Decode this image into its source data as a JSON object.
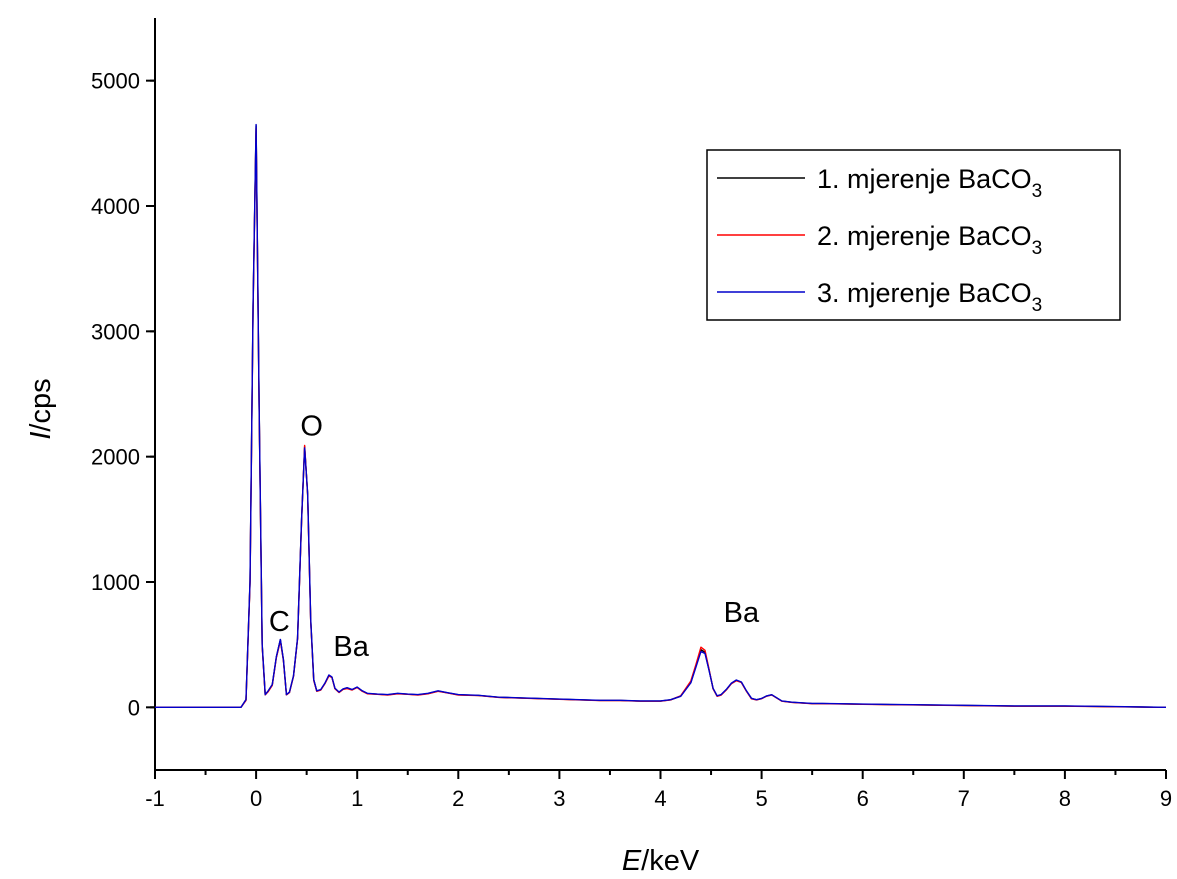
{
  "chart_data": {
    "type": "line",
    "title": "",
    "xlabel": {
      "italic": "E",
      "rest": "/keV"
    },
    "ylabel": {
      "italic": "I",
      "rest": "/cps"
    },
    "xlim": [
      -1,
      9
    ],
    "ylim": [
      -500,
      5500
    ],
    "xticks": [
      -1,
      0,
      1,
      2,
      3,
      4,
      5,
      6,
      7,
      8,
      9
    ],
    "yticks": [
      0,
      1000,
      2000,
      3000,
      4000,
      5000
    ],
    "grid": false,
    "legend_position": "top-right",
    "legend": [
      {
        "prefix": "1. mjerenje BaCO",
        "subscript": "3",
        "color": "#000000"
      },
      {
        "prefix": "2. mjerenje BaCO",
        "subscript": "3",
        "color": "#ff0000"
      },
      {
        "prefix": "3. mjerenje BaCO",
        "subscript": "3",
        "color": "#0000cc"
      }
    ],
    "annotations": [
      {
        "text": "O",
        "x": 0.55,
        "y": 2170
      },
      {
        "text": "C",
        "x": 0.23,
        "y": 610
      },
      {
        "text": "Ba",
        "x": 0.94,
        "y": 410
      },
      {
        "text": "Ba",
        "x": 4.8,
        "y": 680
      }
    ],
    "series": [
      {
        "color": "#000000",
        "x": [
          -1,
          -0.15,
          -0.1,
          -0.06,
          -0.03,
          0,
          0.03,
          0.06,
          0.09,
          0.12,
          0.16,
          0.2,
          0.24,
          0.27,
          0.3,
          0.33,
          0.37,
          0.41,
          0.45,
          0.48,
          0.51,
          0.54,
          0.57,
          0.6,
          0.64,
          0.68,
          0.72,
          0.75,
          0.78,
          0.82,
          0.86,
          0.9,
          0.95,
          1.0,
          1.05,
          1.1,
          1.2,
          1.3,
          1.4,
          1.5,
          1.6,
          1.7,
          1.8,
          1.9,
          2.0,
          2.2,
          2.4,
          2.6,
          2.8,
          3.0,
          3.2,
          3.4,
          3.6,
          3.8,
          4.0,
          4.1,
          4.2,
          4.3,
          4.35,
          4.4,
          4.44,
          4.48,
          4.52,
          4.56,
          4.6,
          4.65,
          4.7,
          4.75,
          4.8,
          4.85,
          4.9,
          4.95,
          5.0,
          5.05,
          5.1,
          5.15,
          5.2,
          5.3,
          5.4,
          5.5,
          5.6,
          6.0,
          6.5,
          7.0,
          7.5,
          8.0,
          8.5,
          9.0
        ],
        "y": [
          0,
          0,
          60,
          1000,
          3200,
          4640,
          2400,
          500,
          100,
          130,
          180,
          400,
          540,
          380,
          100,
          120,
          250,
          550,
          1500,
          2080,
          1700,
          700,
          220,
          130,
          140,
          190,
          255,
          240,
          150,
          120,
          145,
          155,
          140,
          160,
          130,
          110,
          105,
          100,
          110,
          105,
          100,
          110,
          130,
          115,
          100,
          95,
          80,
          75,
          70,
          65,
          60,
          55,
          55,
          50,
          50,
          60,
          90,
          200,
          330,
          460,
          440,
          300,
          150,
          90,
          100,
          140,
          190,
          215,
          200,
          130,
          70,
          60,
          70,
          90,
          100,
          75,
          50,
          40,
          35,
          30,
          30,
          25,
          20,
          15,
          10,
          10,
          5,
          0
        ]
      },
      {
        "color": "#ff0000",
        "x": [
          -1,
          -0.15,
          -0.1,
          -0.06,
          -0.03,
          0,
          0.03,
          0.06,
          0.09,
          0.12,
          0.16,
          0.2,
          0.24,
          0.27,
          0.3,
          0.33,
          0.37,
          0.41,
          0.45,
          0.48,
          0.51,
          0.54,
          0.57,
          0.6,
          0.64,
          0.68,
          0.72,
          0.75,
          0.78,
          0.82,
          0.86,
          0.9,
          0.95,
          1.0,
          1.05,
          1.1,
          1.2,
          1.3,
          1.4,
          1.5,
          1.6,
          1.7,
          1.8,
          1.9,
          2.0,
          2.2,
          2.4,
          2.6,
          2.8,
          3.0,
          3.2,
          3.4,
          3.6,
          3.8,
          4.0,
          4.1,
          4.2,
          4.3,
          4.35,
          4.4,
          4.44,
          4.48,
          4.52,
          4.56,
          4.6,
          4.65,
          4.7,
          4.75,
          4.8,
          4.85,
          4.9,
          4.95,
          5.0,
          5.05,
          5.1,
          5.15,
          5.2,
          5.3,
          5.4,
          5.5,
          5.6,
          6.0,
          6.5,
          7.0,
          7.5,
          8.0,
          8.5,
          9.0
        ],
        "y": [
          0,
          0,
          55,
          990,
          3180,
          4620,
          2380,
          490,
          100,
          125,
          175,
          395,
          530,
          375,
          100,
          118,
          248,
          545,
          1490,
          2090,
          1690,
          690,
          215,
          128,
          138,
          188,
          250,
          238,
          148,
          118,
          143,
          150,
          138,
          158,
          128,
          108,
          104,
          98,
          108,
          104,
          98,
          108,
          128,
          114,
          98,
          94,
          79,
          74,
          69,
          64,
          59,
          54,
          54,
          49,
          49,
          59,
          92,
          210,
          340,
          480,
          455,
          305,
          148,
          88,
          98,
          138,
          188,
          212,
          198,
          128,
          68,
          59,
          69,
          89,
          99,
          74,
          49,
          39,
          34,
          29,
          29,
          24,
          19,
          14,
          9,
          9,
          4,
          0
        ]
      },
      {
        "color": "#0000cc",
        "x": [
          -1,
          -0.15,
          -0.1,
          -0.06,
          -0.03,
          0,
          0.03,
          0.06,
          0.09,
          0.12,
          0.16,
          0.2,
          0.24,
          0.27,
          0.3,
          0.33,
          0.37,
          0.41,
          0.45,
          0.48,
          0.51,
          0.54,
          0.57,
          0.6,
          0.64,
          0.68,
          0.72,
          0.75,
          0.78,
          0.82,
          0.86,
          0.9,
          0.95,
          1.0,
          1.05,
          1.1,
          1.2,
          1.3,
          1.4,
          1.5,
          1.6,
          1.7,
          1.8,
          1.9,
          2.0,
          2.2,
          2.4,
          2.6,
          2.8,
          3.0,
          3.2,
          3.4,
          3.6,
          3.8,
          4.0,
          4.1,
          4.2,
          4.3,
          4.35,
          4.4,
          4.44,
          4.48,
          4.52,
          4.56,
          4.6,
          4.65,
          4.7,
          4.75,
          4.8,
          4.85,
          4.9,
          4.95,
          5.0,
          5.05,
          5.1,
          5.15,
          5.2,
          5.3,
          5.4,
          5.5,
          5.6,
          6.0,
          6.5,
          7.0,
          7.5,
          8.0,
          8.5,
          9.0
        ],
        "y": [
          0,
          0,
          62,
          1010,
          3210,
          4650,
          2410,
          505,
          102,
          132,
          182,
          402,
          542,
          382,
          102,
          122,
          252,
          552,
          1505,
          2070,
          1705,
          705,
          222,
          132,
          142,
          192,
          258,
          242,
          152,
          122,
          147,
          157,
          142,
          162,
          132,
          112,
          106,
          102,
          112,
          106,
          102,
          112,
          132,
          116,
          102,
          96,
          81,
          76,
          71,
          66,
          61,
          56,
          56,
          51,
          51,
          61,
          88,
          195,
          320,
          445,
          430,
          295,
          152,
          92,
          102,
          142,
          192,
          218,
          202,
          132,
          72,
          61,
          71,
          91,
          101,
          76,
          51,
          41,
          36,
          31,
          31,
          26,
          21,
          16,
          11,
          11,
          6,
          0
        ]
      }
    ]
  }
}
